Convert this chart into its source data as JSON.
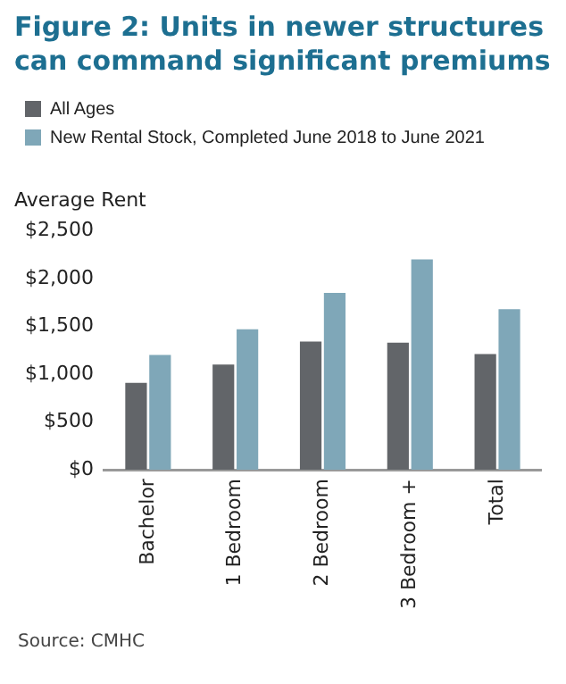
{
  "chart_data": {
    "type": "bar",
    "title": "Figure 2: Units in newer structures can command significant premiums",
    "ylabel": "Average Rent",
    "categories": [
      "Bachelor",
      "1 Bedroom",
      "2 Bedroom",
      "3 Bedroom +",
      "Total"
    ],
    "series": [
      {
        "name": "All Ages",
        "color": "#626569",
        "values": [
          910,
          1100,
          1340,
          1330,
          1210
        ]
      },
      {
        "name": "New Rental Stock, Completed June 2018 to June 2021",
        "color": "#7fa7b8",
        "values": [
          1200,
          1470,
          1850,
          2200,
          1680
        ]
      }
    ],
    "ylim": [
      0,
      2500
    ],
    "yticks": [
      {
        "value": 0,
        "label": "$0"
      },
      {
        "value": 500,
        "label": "$500"
      },
      {
        "value": 1000,
        "label": "$1,000"
      },
      {
        "value": 1500,
        "label": "$1,500"
      },
      {
        "value": 2000,
        "label": "$2,000"
      },
      {
        "value": 2500,
        "label": "$2,500"
      }
    ],
    "grid": false,
    "legend": "top left",
    "annotations": [
      "Source: CMHC"
    ]
  }
}
